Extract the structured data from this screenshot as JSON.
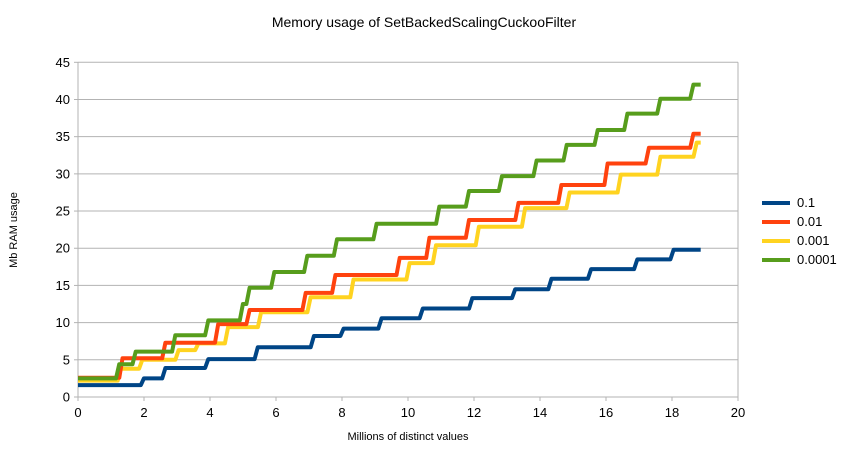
{
  "title": "Memory usage of SetBackedScalingCuckooFilter",
  "colors": {
    "background": "#ffffff",
    "grid": "#b3b3b3",
    "axis": "#b3b3b3",
    "text": "#000000"
  },
  "chart_data": {
    "type": "line",
    "subtype": "step",
    "title": "Memory usage of SetBackedScalingCuckooFilter",
    "xlabel": "Millions of distinct values",
    "ylabel": "Mb RAM usage",
    "xlim": [
      0,
      20
    ],
    "ylim": [
      0,
      45
    ],
    "xticks": [
      0,
      2,
      4,
      6,
      8,
      10,
      12,
      14,
      16,
      18,
      20
    ],
    "yticks": [
      0,
      5,
      10,
      15,
      20,
      25,
      30,
      35,
      40,
      45
    ],
    "grid": "horizontal-only",
    "legend_position": "right",
    "x_end": 18.87,
    "series": [
      {
        "name": "0.1",
        "color": "#004586",
        "steps": [
          [
            0,
            1.6
          ],
          [
            1.95,
            2.5
          ],
          [
            2.6,
            3.9
          ],
          [
            3.9,
            5.1
          ],
          [
            5.4,
            6.7
          ],
          [
            7.1,
            8.2
          ],
          [
            8.0,
            9.2
          ],
          [
            9.15,
            10.6
          ],
          [
            10.4,
            11.9
          ],
          [
            11.9,
            13.3
          ],
          [
            13.2,
            14.5
          ],
          [
            14.3,
            15.9
          ],
          [
            15.5,
            17.2
          ],
          [
            16.9,
            18.5
          ],
          [
            18.0,
            19.8
          ]
        ]
      },
      {
        "name": "0.01",
        "color": "#ff420e",
        "steps": [
          [
            0,
            2.6
          ],
          [
            1.3,
            5.2
          ],
          [
            2.6,
            7.3
          ],
          [
            4.2,
            9.8
          ],
          [
            5.15,
            11.7
          ],
          [
            6.85,
            14.0
          ],
          [
            7.75,
            16.4
          ],
          [
            9.7,
            18.7
          ],
          [
            10.6,
            21.4
          ],
          [
            11.8,
            23.8
          ],
          [
            13.3,
            26.1
          ],
          [
            14.6,
            28.5
          ],
          [
            16.0,
            31.4
          ],
          [
            17.25,
            33.5
          ],
          [
            18.6,
            35.4
          ]
        ]
      },
      {
        "name": "0.001",
        "color": "#ffd320",
        "steps": [
          [
            0,
            2.2
          ],
          [
            1.25,
            3.8
          ],
          [
            1.9,
            5.0
          ],
          [
            3.0,
            6.3
          ],
          [
            3.6,
            7.2
          ],
          [
            4.5,
            9.4
          ],
          [
            5.5,
            11.4
          ],
          [
            7.0,
            13.4
          ],
          [
            8.3,
            15.8
          ],
          [
            10.0,
            18.0
          ],
          [
            10.8,
            20.4
          ],
          [
            12.1,
            22.9
          ],
          [
            13.5,
            25.4
          ],
          [
            14.85,
            27.5
          ],
          [
            16.4,
            29.9
          ],
          [
            17.6,
            32.3
          ],
          [
            18.7,
            34.2
          ]
        ]
      },
      {
        "name": "0.0001",
        "color": "#579d1c",
        "steps": [
          [
            0,
            2.5
          ],
          [
            1.2,
            4.4
          ],
          [
            1.7,
            6.1
          ],
          [
            2.9,
            8.3
          ],
          [
            3.9,
            10.3
          ],
          [
            4.95,
            12.5
          ],
          [
            5.15,
            14.7
          ],
          [
            5.9,
            16.8
          ],
          [
            6.9,
            19.0
          ],
          [
            7.8,
            21.2
          ],
          [
            9.0,
            23.3
          ],
          [
            10.9,
            25.6
          ],
          [
            11.8,
            27.7
          ],
          [
            12.8,
            29.7
          ],
          [
            13.85,
            31.8
          ],
          [
            14.76,
            33.9
          ],
          [
            15.7,
            35.9
          ],
          [
            16.6,
            38.1
          ],
          [
            17.6,
            40.1
          ],
          [
            18.6,
            42.0
          ]
        ]
      }
    ]
  },
  "layout_note": ""
}
